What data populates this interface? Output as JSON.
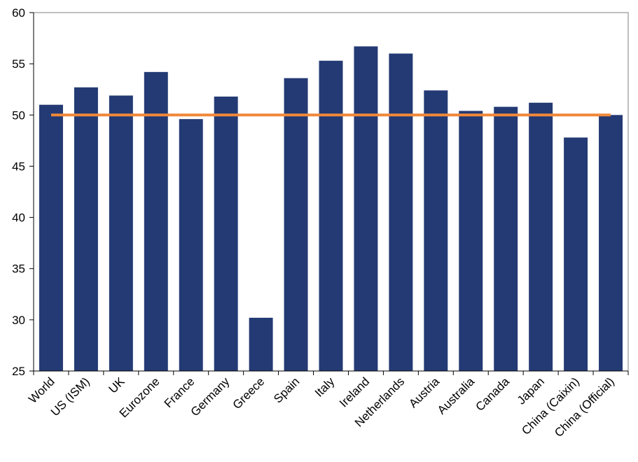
{
  "chart_data": {
    "type": "bar",
    "title": "",
    "xlabel": "",
    "ylabel": "",
    "categories": [
      "World",
      "US (ISM)",
      "UK",
      "Eurozone",
      "France",
      "Germany",
      "Greece",
      "Spain",
      "Italy",
      "Ireland",
      "Netherlands",
      "Austria",
      "Australia",
      "Canada",
      "Japan",
      "China (Caixin)",
      "China (Official)"
    ],
    "values": [
      51.0,
      52.7,
      51.9,
      54.2,
      49.6,
      51.8,
      30.2,
      53.6,
      55.3,
      56.7,
      56.0,
      52.4,
      50.4,
      50.8,
      51.2,
      47.8,
      50.0
    ],
    "reference_line": {
      "value": 50,
      "color": "#f0883a"
    },
    "ylim": [
      25,
      60
    ],
    "yticks": [
      25,
      30,
      35,
      40,
      45,
      50,
      55,
      60
    ],
    "ytick_labels": [
      "25",
      "30",
      "35",
      "40",
      "45",
      "50",
      "55",
      "60"
    ],
    "bar_color": "#233a74",
    "grid": false,
    "legend": "none"
  }
}
